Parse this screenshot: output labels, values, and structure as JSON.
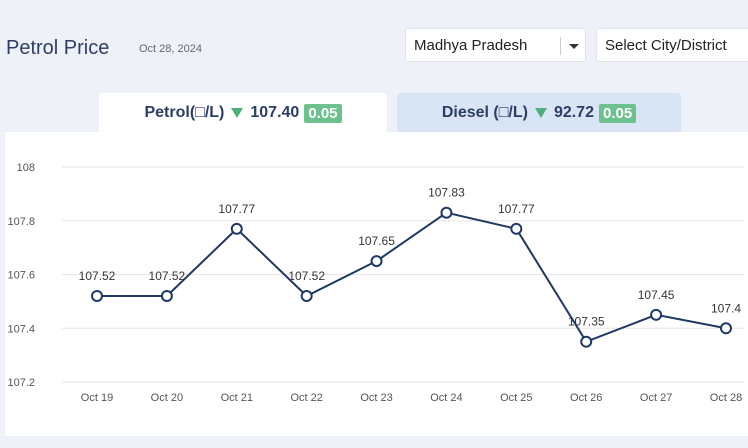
{
  "header": {
    "title": "Petrol Price",
    "date": "Oct 28, 2024",
    "state_select": "Madhya Pradesh",
    "city_select": "Select City/District"
  },
  "tabs": [
    {
      "label": "Petrol(□/L)",
      "price": "107.40",
      "change": "0.05",
      "active": true
    },
    {
      "label": "Diesel (□/L)",
      "price": "92.72",
      "change": "0.05",
      "active": false
    }
  ],
  "colors": {
    "line": "#1f3864",
    "grid": "#e6e6e6",
    "badge": "#6cc18f",
    "down_arrow": "#4caf7d"
  },
  "chart_data": {
    "type": "line",
    "title": "",
    "xlabel": "",
    "ylabel": "",
    "categories": [
      "Oct 19",
      "Oct 20",
      "Oct 21",
      "Oct 22",
      "Oct 23",
      "Oct 24",
      "Oct 25",
      "Oct 26",
      "Oct 27",
      "Oct 28"
    ],
    "values": [
      107.52,
      107.52,
      107.77,
      107.52,
      107.65,
      107.83,
      107.77,
      107.35,
      107.45,
      107.4
    ],
    "data_labels": [
      "107.52",
      "107.52",
      "107.77",
      "107.52",
      "107.65",
      "107.83",
      "107.77",
      "107.35",
      "107.45",
      "107.4"
    ],
    "ylim": [
      107.2,
      108
    ],
    "yticks": [
      "107.2",
      "107.4",
      "107.6",
      "107.8",
      "108"
    ],
    "grid": true,
    "legend": "none"
  }
}
